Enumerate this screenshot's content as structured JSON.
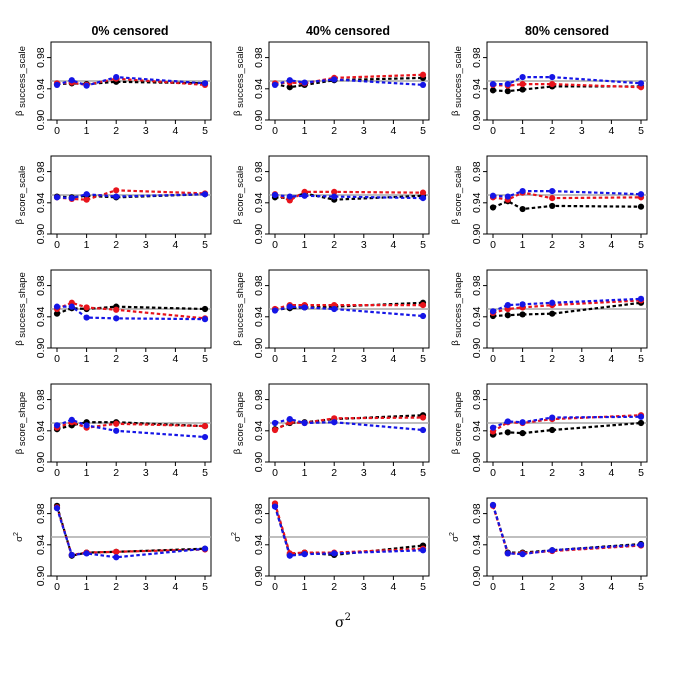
{
  "figure": {
    "xlabel": "σ",
    "xlabel_sup": "2"
  },
  "colors": {
    "black_series": "#000000",
    "red_series": "#e8141c",
    "blue_series": "#1515e6",
    "reference_line": "#aaaaaa"
  },
  "chart_data": {
    "type": "line",
    "layout": "grid 5 rows x 3 columns",
    "columns": [
      "0% censored",
      "40% censored",
      "80% censored"
    ],
    "rows": [
      {
        "ylabel": "β success_scale",
        "sym": "β",
        "sub": "success_scale"
      },
      {
        "ylabel": "β score_scale",
        "sym": "β",
        "sub": "score_scale"
      },
      {
        "ylabel": "β success_shape",
        "sym": "β",
        "sub": "success_shape"
      },
      {
        "ylabel": "β score_shape",
        "sym": "β",
        "sub": "score_shape"
      },
      {
        "ylabel": "σ²",
        "sym": "σ",
        "sup": "2",
        "sub": ""
      }
    ],
    "x": [
      0,
      0.5,
      1,
      2,
      5
    ],
    "xlim": [
      0,
      5
    ],
    "xticks": [
      0,
      1,
      2,
      3,
      4,
      5
    ],
    "ylim": [
      0.9,
      1.0
    ],
    "yticks": [
      0.9,
      0.94,
      0.98
    ],
    "ytick_labels": [
      "0.90",
      "0.94",
      "0.98"
    ],
    "reference_line": 0.95,
    "grid": false,
    "legend": "none",
    "panels": [
      {
        "row": 0,
        "col": 0,
        "series": [
          {
            "color": "black",
            "values": [
              0.946,
              0.947,
              0.946,
              0.949,
              0.947
            ]
          },
          {
            "color": "red",
            "values": [
              0.947,
              0.948,
              0.945,
              0.953,
              0.945
            ]
          },
          {
            "color": "blue",
            "values": [
              0.945,
              0.951,
              0.944,
              0.955,
              0.947
            ]
          }
        ]
      },
      {
        "row": 0,
        "col": 1,
        "series": [
          {
            "color": "black",
            "values": [
              0.946,
              0.942,
              0.945,
              0.951,
              0.954
            ]
          },
          {
            "color": "red",
            "values": [
              0.947,
              0.948,
              0.947,
              0.954,
              0.958
            ]
          },
          {
            "color": "blue",
            "values": [
              0.945,
              0.951,
              0.948,
              0.952,
              0.945
            ]
          }
        ]
      },
      {
        "row": 0,
        "col": 2,
        "series": [
          {
            "color": "black",
            "values": [
              0.938,
              0.937,
              0.939,
              0.943,
              0.943
            ]
          },
          {
            "color": "red",
            "values": [
              0.945,
              0.944,
              0.946,
              0.946,
              0.942
            ]
          },
          {
            "color": "blue",
            "values": [
              0.946,
              0.946,
              0.955,
              0.955,
              0.947
            ]
          }
        ]
      },
      {
        "row": 1,
        "col": 0,
        "series": [
          {
            "color": "black",
            "values": [
              0.948,
              0.947,
              0.949,
              0.947,
              0.951
            ]
          },
          {
            "color": "red",
            "values": [
              0.947,
              0.945,
              0.944,
              0.956,
              0.952
            ]
          },
          {
            "color": "blue",
            "values": [
              0.947,
              0.946,
              0.951,
              0.948,
              0.951
            ]
          }
        ]
      },
      {
        "row": 1,
        "col": 1,
        "series": [
          {
            "color": "black",
            "values": [
              0.947,
              0.946,
              0.952,
              0.944,
              0.949
            ]
          },
          {
            "color": "red",
            "values": [
              0.951,
              0.943,
              0.954,
              0.954,
              0.953
            ]
          },
          {
            "color": "blue",
            "values": [
              0.95,
              0.948,
              0.949,
              0.948,
              0.946
            ]
          }
        ]
      },
      {
        "row": 1,
        "col": 2,
        "series": [
          {
            "color": "black",
            "values": [
              0.934,
              0.942,
              0.932,
              0.936,
              0.935
            ]
          },
          {
            "color": "red",
            "values": [
              0.947,
              0.944,
              0.953,
              0.946,
              0.947
            ]
          },
          {
            "color": "blue",
            "values": [
              0.949,
              0.948,
              0.955,
              0.955,
              0.951
            ]
          }
        ]
      },
      {
        "row": 2,
        "col": 0,
        "series": [
          {
            "color": "black",
            "values": [
              0.944,
              0.951,
              0.95,
              0.953,
              0.95
            ]
          },
          {
            "color": "red",
            "values": [
              0.95,
              0.958,
              0.952,
              0.949,
              0.938
            ]
          },
          {
            "color": "blue",
            "values": [
              0.953,
              0.953,
              0.939,
              0.938,
              0.937
            ]
          }
        ]
      },
      {
        "row": 2,
        "col": 1,
        "series": [
          {
            "color": "black",
            "values": [
              0.949,
              0.951,
              0.952,
              0.953,
              0.958
            ]
          },
          {
            "color": "red",
            "values": [
              0.95,
              0.955,
              0.955,
              0.955,
              0.955
            ]
          },
          {
            "color": "blue",
            "values": [
              0.948,
              0.953,
              0.952,
              0.95,
              0.941
            ]
          }
        ]
      },
      {
        "row": 2,
        "col": 2,
        "series": [
          {
            "color": "black",
            "values": [
              0.941,
              0.942,
              0.943,
              0.944,
              0.958
            ]
          },
          {
            "color": "red",
            "values": [
              0.945,
              0.95,
              0.952,
              0.955,
              0.961
            ]
          },
          {
            "color": "blue",
            "values": [
              0.947,
              0.955,
              0.956,
              0.958,
              0.963
            ]
          }
        ]
      },
      {
        "row": 3,
        "col": 0,
        "series": [
          {
            "color": "black",
            "values": [
              0.942,
              0.947,
              0.951,
              0.951,
              0.946
            ]
          },
          {
            "color": "red",
            "values": [
              0.944,
              0.951,
              0.944,
              0.949,
              0.946
            ]
          },
          {
            "color": "blue",
            "values": [
              0.947,
              0.954,
              0.947,
              0.94,
              0.932
            ]
          }
        ]
      },
      {
        "row": 3,
        "col": 1,
        "series": [
          {
            "color": "black",
            "values": [
              0.942,
              0.95,
              0.951,
              0.955,
              0.96
            ]
          },
          {
            "color": "red",
            "values": [
              0.941,
              0.951,
              0.95,
              0.956,
              0.957
            ]
          },
          {
            "color": "blue",
            "values": [
              0.95,
              0.955,
              0.95,
              0.951,
              0.941
            ]
          }
        ]
      },
      {
        "row": 3,
        "col": 2,
        "series": [
          {
            "color": "black",
            "values": [
              0.935,
              0.938,
              0.937,
              0.941,
              0.95
            ]
          },
          {
            "color": "red",
            "values": [
              0.939,
              0.951,
              0.95,
              0.955,
              0.96
            ]
          },
          {
            "color": "blue",
            "values": [
              0.944,
              0.952,
              0.951,
              0.957,
              0.958
            ]
          }
        ]
      },
      {
        "row": 4,
        "col": 0,
        "series": [
          {
            "color": "black",
            "values": [
              0.99,
              0.926,
              0.93,
              0.931,
              0.935
            ]
          },
          {
            "color": "red",
            "values": [
              0.988,
              0.927,
              0.93,
              0.931,
              0.934
            ]
          },
          {
            "color": "blue",
            "values": [
              0.987,
              0.927,
              0.929,
              0.924,
              0.935
            ]
          }
        ]
      },
      {
        "row": 4,
        "col": 1,
        "series": [
          {
            "color": "black",
            "values": [
              0.99,
              0.927,
              0.93,
              0.927,
              0.939
            ]
          },
          {
            "color": "red",
            "values": [
              0.993,
              0.929,
              0.93,
              0.93,
              0.935
            ]
          },
          {
            "color": "blue",
            "values": [
              0.989,
              0.926,
              0.928,
              0.929,
              0.933
            ]
          }
        ]
      },
      {
        "row": 4,
        "col": 2,
        "series": [
          {
            "color": "black",
            "values": [
              0.991,
              0.93,
              0.93,
              0.933,
              0.941
            ]
          },
          {
            "color": "red",
            "values": [
              0.99,
              0.929,
              0.929,
              0.932,
              0.939
            ]
          },
          {
            "color": "blue",
            "values": [
              0.991,
              0.929,
              0.928,
              0.933,
              0.94
            ]
          }
        ]
      }
    ]
  }
}
